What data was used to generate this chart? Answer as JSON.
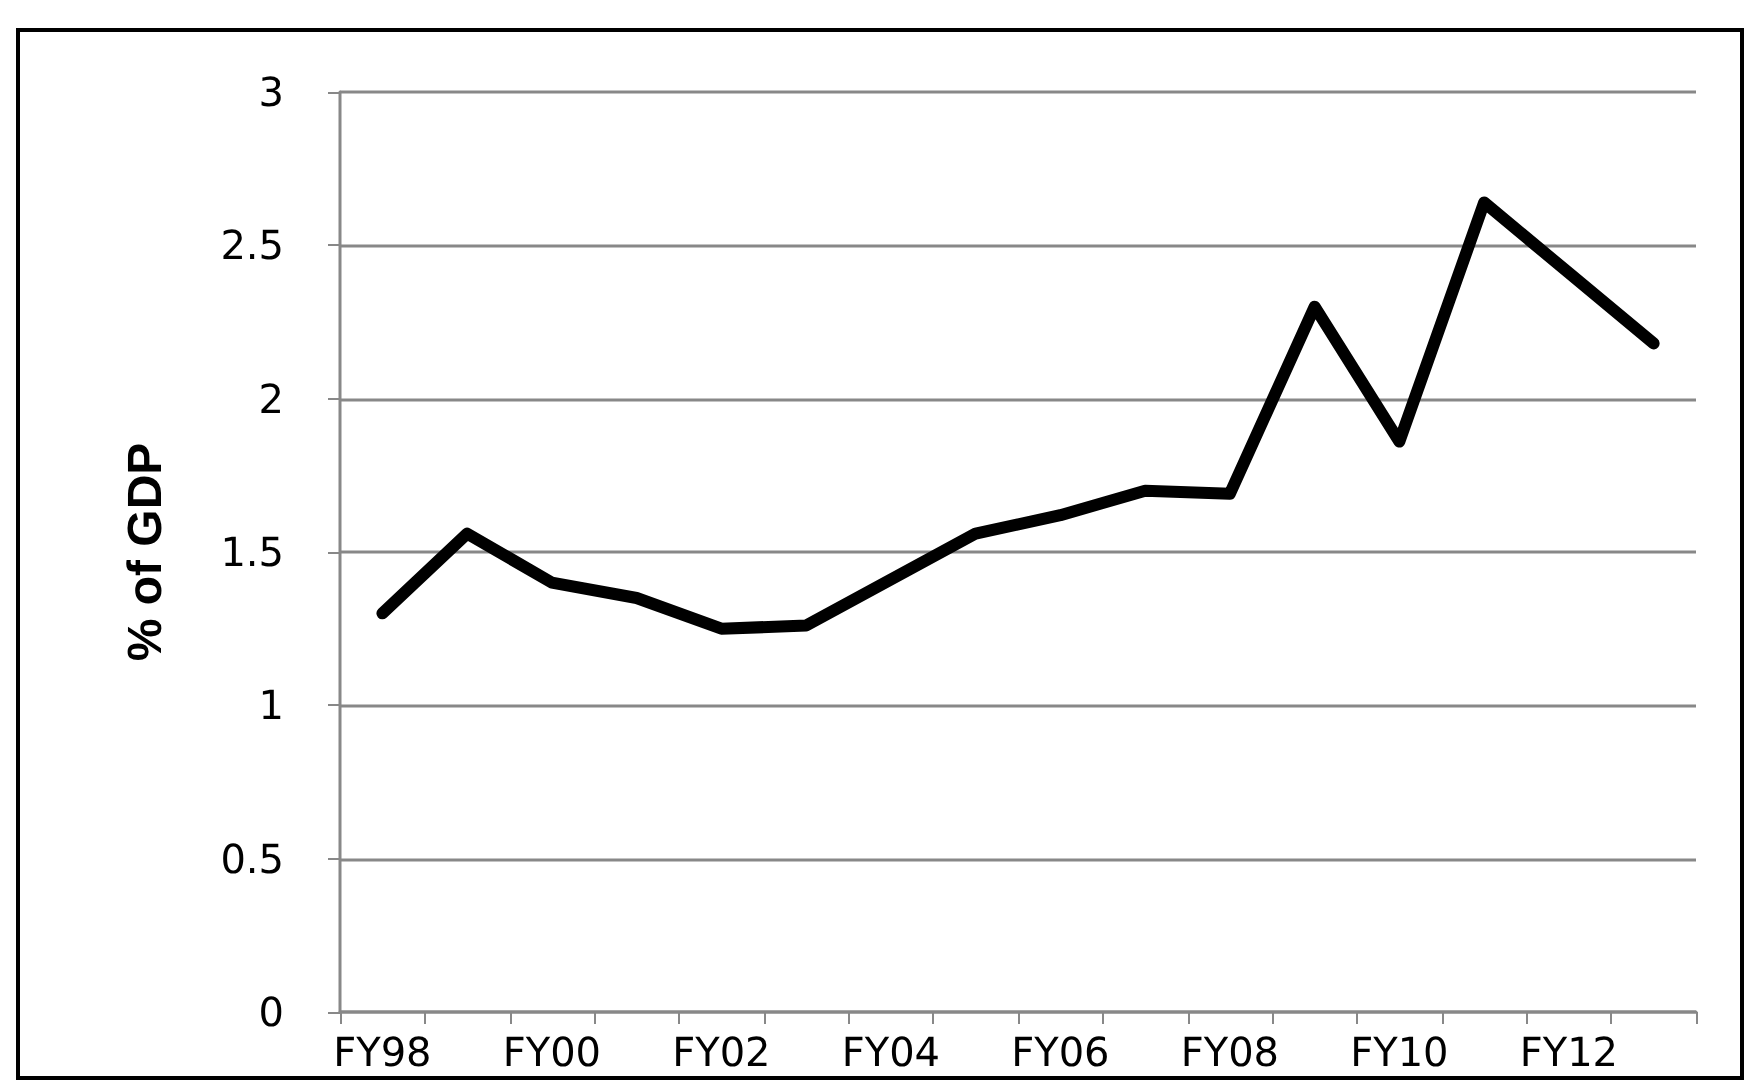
{
  "chart_data": {
    "type": "line",
    "ylabel": "% of GDP",
    "categories": [
      "FY98",
      null,
      "FY00",
      null,
      "FY02",
      null,
      "FY04",
      null,
      "FY06",
      null,
      "FY08",
      null,
      "FY10",
      null,
      "FY12",
      null
    ],
    "series": [
      {
        "color": "#000000",
        "values": [
          1.3,
          1.56,
          1.4,
          1.35,
          1.25,
          1.26,
          1.41,
          1.56,
          1.62,
          1.7,
          1.69,
          2.3,
          1.86,
          2.64,
          2.41,
          2.18
        ]
      }
    ],
    "ylim": [
      0,
      3
    ],
    "yticks": [
      0,
      0.5,
      1,
      1.5,
      2,
      2.5,
      3
    ],
    "grid": "y",
    "marker": "none",
    "line_style": "solid"
  }
}
